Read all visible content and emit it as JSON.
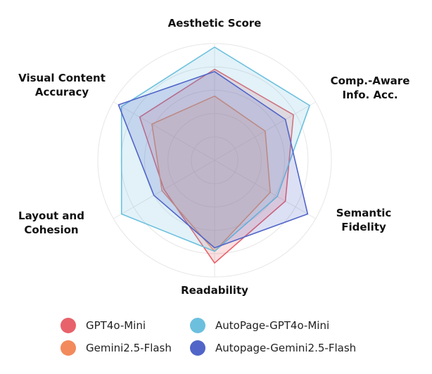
{
  "chart_data": {
    "type": "radar",
    "axes": [
      "Aesthetic Score",
      "Comp.-Aware\nInfo. Acc.",
      "Semantic\nFidelity",
      "Readability",
      "Layout and\nCohesion",
      "Visual Content\nAccuracy"
    ],
    "rmax": 1.0,
    "grid": true,
    "series": [
      {
        "name": "GPT4o-Mini",
        "color": "#E8626B",
        "values": [
          0.78,
          0.78,
          0.7,
          0.88,
          0.5,
          0.74
        ]
      },
      {
        "name": "Gemini2.5-Flash",
        "color": "#F28A5C",
        "values": [
          0.55,
          0.5,
          0.55,
          0.78,
          0.52,
          0.62
        ]
      },
      {
        "name": "AutoPage-GPT4o-Mini",
        "color": "#6CC0DE",
        "values": [
          0.97,
          0.94,
          0.62,
          0.78,
          0.92,
          0.92
        ]
      },
      {
        "name": "Autopage-Gemini2.5-Flash",
        "color": "#5165C8",
        "values": [
          0.76,
          0.7,
          0.92,
          0.75,
          0.6,
          0.95
        ]
      }
    ]
  },
  "legend": {
    "items": [
      {
        "label": "GPT4o-Mini",
        "color": "#E8626B"
      },
      {
        "label": "AutoPage-GPT4o-Mini",
        "color": "#6CC0DE"
      },
      {
        "label": "Gemini2.5-Flash",
        "color": "#F28A5C"
      },
      {
        "label": "Autopage-Gemini2.5-Flash",
        "color": "#5165C8"
      }
    ]
  }
}
